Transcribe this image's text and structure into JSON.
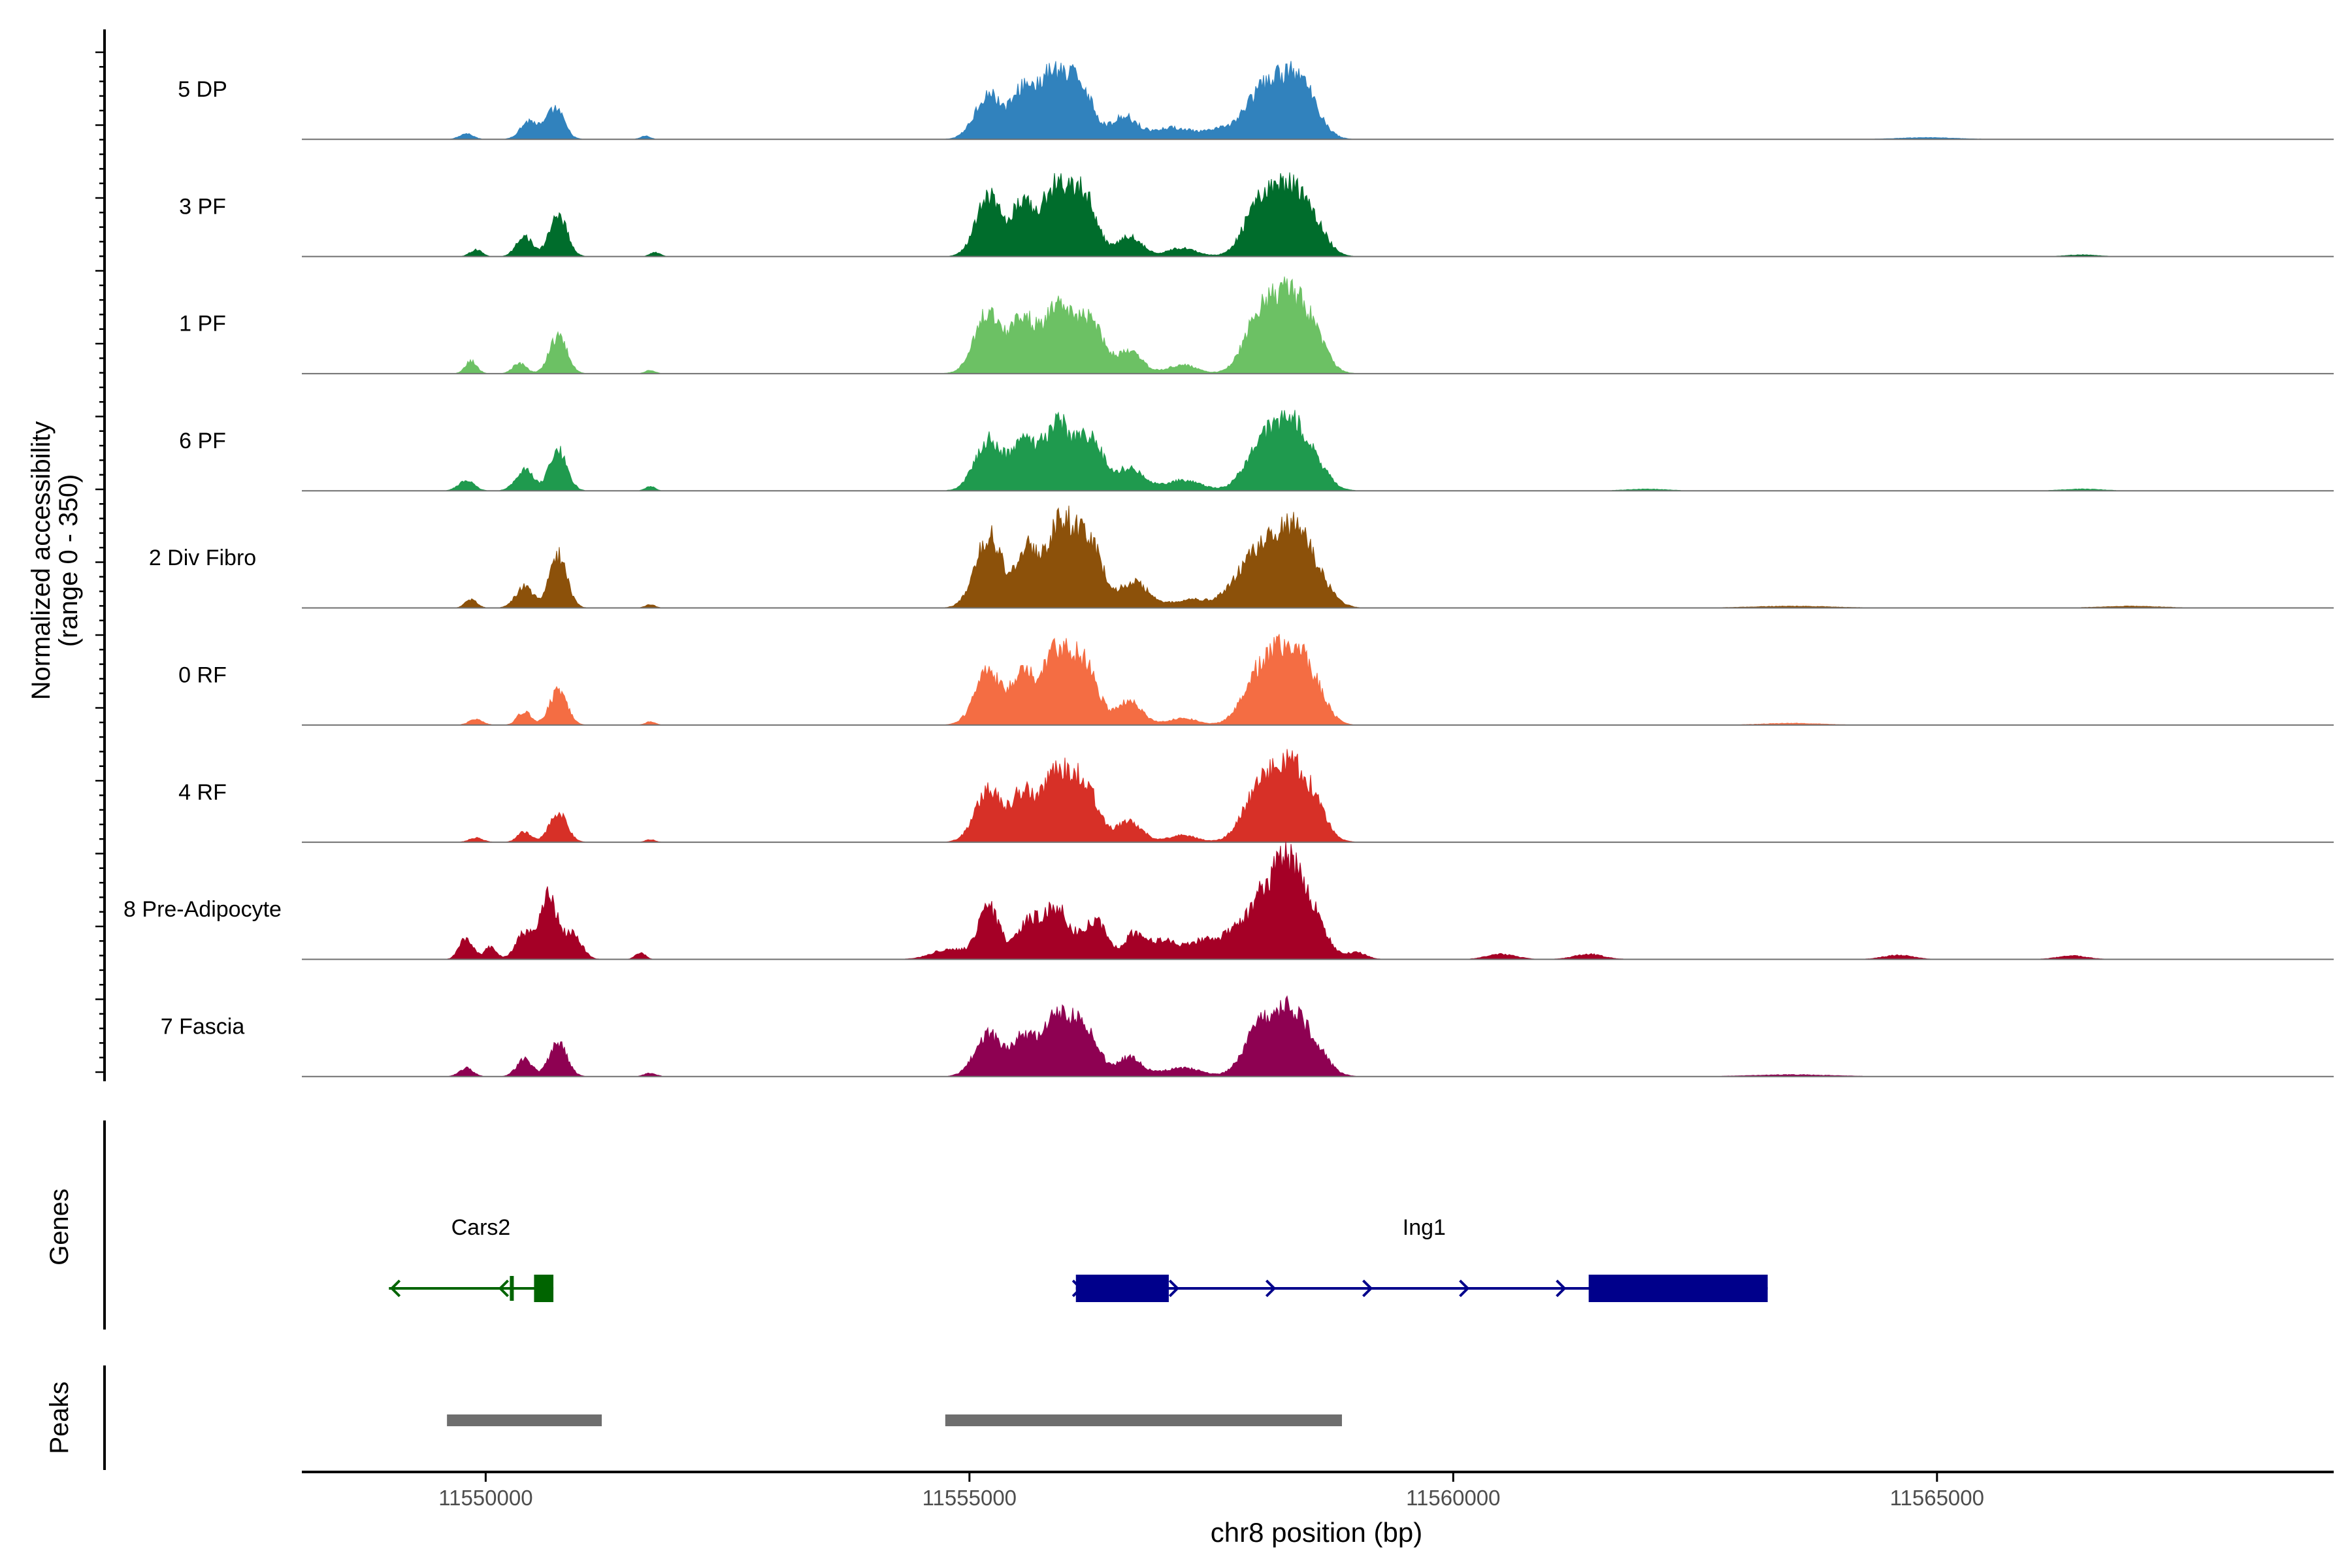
{
  "chart_data": {
    "type": "area",
    "title": "",
    "ylabel_line1": "Normalized accessibility",
    "ylabel_line2": "(range 0 - 350)",
    "y_range": [
      0,
      350
    ],
    "xlabel": "chr8 position (bp)",
    "xlim": [
      11548100,
      11569100
    ],
    "x_ticks": [
      11550000,
      11555000,
      11560000,
      11565000
    ],
    "x_tick_labels": [
      "11550000",
      "11555000",
      "11560000",
      "11565000"
    ],
    "genes_label": "Genes",
    "peaks_label": "Peaks",
    "tracks": [
      {
        "name": "5 DP",
        "color": "#3182bd",
        "scale": 0.7,
        "peaks": [
          [
            11549800,
            0.07,
            70
          ],
          [
            11550450,
            0.22,
            90
          ],
          [
            11550720,
            0.37,
            90
          ],
          [
            11551650,
            0.04,
            50
          ],
          [
            11555200,
            0.55,
            140
          ],
          [
            11555550,
            0.53,
            110
          ],
          [
            11555850,
            0.77,
            150
          ],
          [
            11556150,
            0.62,
            130
          ],
          [
            11556600,
            0.27,
            130
          ],
          [
            11557100,
            0.14,
            220
          ],
          [
            11557600,
            0.1,
            150
          ],
          [
            11558000,
            0.5,
            170
          ],
          [
            11558300,
            0.58,
            170
          ],
          [
            11558500,
            0.33,
            150
          ],
          [
            11564900,
            0.02,
            300
          ]
        ]
      },
      {
        "name": "3 PF",
        "color": "#006d2c",
        "scale": 0.72,
        "peaks": [
          [
            11549900,
            0.08,
            60
          ],
          [
            11550400,
            0.25,
            80
          ],
          [
            11550750,
            0.5,
            90
          ],
          [
            11551750,
            0.05,
            50
          ],
          [
            11555200,
            0.7,
            130
          ],
          [
            11555550,
            0.6,
            110
          ],
          [
            11555900,
            0.85,
            150
          ],
          [
            11556200,
            0.65,
            120
          ],
          [
            11556650,
            0.24,
            130
          ],
          [
            11557200,
            0.1,
            150
          ],
          [
            11558000,
            0.6,
            160
          ],
          [
            11558300,
            0.68,
            160
          ],
          [
            11558550,
            0.35,
            140
          ],
          [
            11566500,
            0.02,
            150
          ]
        ]
      },
      {
        "name": "1 PF",
        "color": "#6cc164",
        "scale": 0.72,
        "peaks": [
          [
            11549850,
            0.15,
            60
          ],
          [
            11550350,
            0.12,
            70
          ],
          [
            11550750,
            0.45,
            90
          ],
          [
            11551700,
            0.04,
            50
          ],
          [
            11555200,
            0.75,
            140
          ],
          [
            11555550,
            0.6,
            110
          ],
          [
            11555900,
            0.82,
            150
          ],
          [
            11556250,
            0.6,
            130
          ],
          [
            11556650,
            0.26,
            130
          ],
          [
            11557200,
            0.1,
            150
          ],
          [
            11558000,
            0.65,
            160
          ],
          [
            11558300,
            0.8,
            160
          ],
          [
            11558550,
            0.4,
            140
          ]
        ]
      },
      {
        "name": "6 PF",
        "color": "#1f9a4e",
        "scale": 0.72,
        "peaks": [
          [
            11549800,
            0.12,
            80
          ],
          [
            11550400,
            0.25,
            90
          ],
          [
            11550750,
            0.48,
            90
          ],
          [
            11551700,
            0.05,
            50
          ],
          [
            11555200,
            0.6,
            140
          ],
          [
            11555550,
            0.55,
            110
          ],
          [
            11555900,
            0.8,
            150
          ],
          [
            11556250,
            0.6,
            130
          ],
          [
            11556650,
            0.26,
            140
          ],
          [
            11557200,
            0.12,
            200
          ],
          [
            11558000,
            0.5,
            160
          ],
          [
            11558300,
            0.7,
            160
          ],
          [
            11558550,
            0.3,
            150
          ],
          [
            11562000,
            0.02,
            200
          ],
          [
            11566500,
            0.02,
            200
          ]
        ]
      },
      {
        "name": "2 Div Fibro",
        "color": "#8c510a",
        "scale": 0.72,
        "peaks": [
          [
            11549850,
            0.1,
            60
          ],
          [
            11550400,
            0.25,
            90
          ],
          [
            11550750,
            0.62,
            90
          ],
          [
            11551700,
            0.04,
            50
          ],
          [
            11555200,
            0.85,
            140
          ],
          [
            11555600,
            0.65,
            110
          ],
          [
            11555950,
            1.0,
            150
          ],
          [
            11556250,
            0.7,
            130
          ],
          [
            11556700,
            0.3,
            150
          ],
          [
            11557300,
            0.1,
            200
          ],
          [
            11557800,
            0.3,
            150
          ],
          [
            11558050,
            0.6,
            150
          ],
          [
            11558350,
            0.85,
            150
          ],
          [
            11558600,
            0.3,
            150
          ],
          [
            11563500,
            0.02,
            400
          ],
          [
            11567000,
            0.02,
            300
          ]
        ]
      },
      {
        "name": "0 RF",
        "color": "#f46d43",
        "scale": 0.72,
        "peaks": [
          [
            11549900,
            0.07,
            70
          ],
          [
            11550400,
            0.16,
            70
          ],
          [
            11550750,
            0.4,
            90
          ],
          [
            11551700,
            0.04,
            50
          ],
          [
            11555200,
            0.62,
            140
          ],
          [
            11555550,
            0.55,
            110
          ],
          [
            11555900,
            0.88,
            150
          ],
          [
            11556200,
            0.65,
            130
          ],
          [
            11556650,
            0.28,
            130
          ],
          [
            11557200,
            0.08,
            150
          ],
          [
            11558000,
            0.6,
            170
          ],
          [
            11558300,
            0.78,
            160
          ],
          [
            11558550,
            0.4,
            140
          ],
          [
            11563500,
            0.02,
            300
          ]
        ]
      },
      {
        "name": "4 RF",
        "color": "#d73027",
        "scale": 0.72,
        "peaks": [
          [
            11549900,
            0.05,
            70
          ],
          [
            11550400,
            0.12,
            70
          ],
          [
            11550750,
            0.35,
            90
          ],
          [
            11551700,
            0.03,
            50
          ],
          [
            11555200,
            0.6,
            140
          ],
          [
            11555550,
            0.55,
            110
          ],
          [
            11555900,
            0.85,
            150
          ],
          [
            11556200,
            0.62,
            130
          ],
          [
            11556650,
            0.25,
            130
          ],
          [
            11557200,
            0.08,
            150
          ],
          [
            11558000,
            0.6,
            170
          ],
          [
            11558300,
            0.75,
            160
          ],
          [
            11558550,
            0.4,
            140
          ]
        ]
      },
      {
        "name": "8 Pre-Adipocyte",
        "color": "#a50026",
        "scale": 0.72,
        "peaks": [
          [
            11549800,
            0.25,
            70
          ],
          [
            11550050,
            0.15,
            60
          ],
          [
            11550400,
            0.3,
            90
          ],
          [
            11550650,
            0.75,
            90
          ],
          [
            11550900,
            0.3,
            90
          ],
          [
            11551600,
            0.08,
            50
          ],
          [
            11554800,
            0.12,
            180
          ],
          [
            11555200,
            0.6,
            110
          ],
          [
            11555600,
            0.4,
            120
          ],
          [
            11555900,
            0.6,
            140
          ],
          [
            11556300,
            0.45,
            120
          ],
          [
            11556700,
            0.28,
            100
          ],
          [
            11557000,
            0.22,
            150
          ],
          [
            11557400,
            0.2,
            150
          ],
          [
            11557750,
            0.3,
            150
          ],
          [
            11558050,
            0.7,
            140
          ],
          [
            11558300,
            0.95,
            130
          ],
          [
            11558550,
            0.5,
            140
          ],
          [
            11559000,
            0.08,
            100
          ],
          [
            11560500,
            0.06,
            150
          ],
          [
            11561400,
            0.06,
            150
          ],
          [
            11564600,
            0.05,
            150
          ],
          [
            11566400,
            0.04,
            150
          ]
        ]
      },
      {
        "name": "7 Fascia",
        "color": "#8e0152",
        "scale": 0.72,
        "peaks": [
          [
            11549800,
            0.1,
            70
          ],
          [
            11550400,
            0.2,
            80
          ],
          [
            11550750,
            0.4,
            90
          ],
          [
            11551700,
            0.04,
            60
          ],
          [
            11555200,
            0.5,
            140
          ],
          [
            11555550,
            0.45,
            110
          ],
          [
            11555900,
            0.7,
            150
          ],
          [
            11556200,
            0.55,
            130
          ],
          [
            11556650,
            0.22,
            130
          ],
          [
            11557200,
            0.1,
            200
          ],
          [
            11558000,
            0.55,
            160
          ],
          [
            11558300,
            0.65,
            160
          ],
          [
            11558550,
            0.3,
            150
          ],
          [
            11563500,
            0.02,
            400
          ]
        ]
      }
    ],
    "genes": [
      {
        "name": "Cars2",
        "color": "#006400",
        "strand": "-",
        "start": 11549000,
        "end": 11550700,
        "exons": [
          [
            11550250,
            11550290
          ],
          [
            11550500,
            11550700
          ]
        ]
      },
      {
        "name": "Ing1",
        "color": "#00008b",
        "strand": "+",
        "start": 11556100,
        "end": 11563250,
        "exons": [
          [
            11556100,
            11557060
          ],
          [
            11561400,
            11563250
          ]
        ]
      }
    ],
    "peak_regions": [
      [
        11549600,
        11551200
      ],
      [
        11554750,
        11558850
      ]
    ],
    "peak_color": "#6e6e6e"
  }
}
